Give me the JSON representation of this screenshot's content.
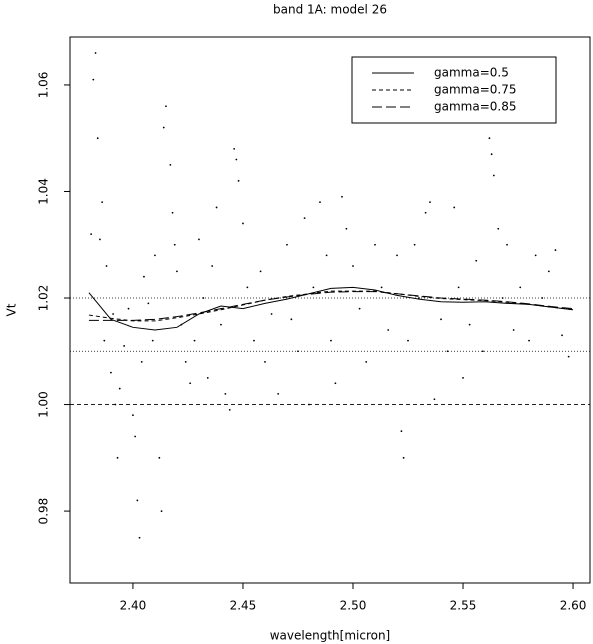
{
  "chart_data": {
    "type": "line",
    "title": "band 1A: model 26",
    "x_label": "wavelength[micron]",
    "y_label": "Vt",
    "xlim": [
      2.3714,
      2.6077
    ],
    "ylim": [
      0.9665,
      1.069
    ],
    "xticks": [
      {
        "value": 2.4,
        "label": "2.40"
      },
      2.45,
      {
        "value": 2.5,
        "label": "2.50"
      },
      2.55,
      {
        "value": 2.6,
        "label": "2.60"
      }
    ],
    "yticks": [
      {
        "value": 0.98,
        "label": "0.98"
      },
      {
        "value": 1.0,
        "label": "1.00"
      },
      {
        "value": 1.02,
        "label": "1.02"
      },
      {
        "value": 1.04,
        "label": "1.04"
      },
      {
        "value": 1.06,
        "label": "1.06"
      }
    ],
    "legend": "top-right",
    "hlines": [
      {
        "value": 1.02,
        "dash": "dotted"
      },
      {
        "value": 1.01,
        "dash": "dotted"
      },
      {
        "value": 1.0,
        "dash": "dashed"
      }
    ],
    "points": {
      "color": "#000000",
      "x": [
        2.381,
        2.382,
        2.383,
        2.384,
        2.385,
        2.386,
        2.387,
        2.388,
        2.39,
        2.391,
        2.392,
        2.393,
        2.394,
        2.396,
        2.398,
        2.4,
        2.401,
        2.402,
        2.403,
        2.404,
        2.405,
        2.407,
        2.409,
        2.41,
        2.412,
        2.413,
        2.414,
        2.415,
        2.417,
        2.418,
        2.419,
        2.42,
        2.422,
        2.424,
        2.426,
        2.428,
        2.43,
        2.432,
        2.434,
        2.436,
        2.438,
        2.44,
        2.442,
        2.444,
        2.446,
        2.447,
        2.448,
        2.45,
        2.452,
        2.455,
        2.458,
        2.46,
        2.463,
        2.466,
        2.47,
        2.472,
        2.475,
        2.478,
        2.48,
        2.482,
        2.485,
        2.488,
        2.49,
        2.492,
        2.495,
        2.497,
        2.5,
        2.503,
        2.506,
        2.51,
        2.513,
        2.516,
        2.52,
        2.522,
        2.523,
        2.525,
        2.528,
        2.53,
        2.533,
        2.535,
        2.537,
        2.54,
        2.543,
        2.546,
        2.548,
        2.55,
        2.553,
        2.556,
        2.559,
        2.562,
        2.563,
        2.564,
        2.566,
        2.568,
        2.57,
        2.573,
        2.576,
        2.58,
        2.583,
        2.586,
        2.589,
        2.592,
        2.595,
        2.598
      ],
      "y": [
        1.032,
        1.061,
        1.066,
        1.05,
        1.031,
        1.038,
        1.012,
        1.026,
        1.006,
        1.017,
        1.0,
        0.99,
        1.003,
        1.011,
        1.018,
        0.998,
        0.994,
        0.982,
        0.975,
        1.008,
        1.024,
        1.019,
        1.012,
        1.028,
        0.99,
        0.98,
        1.052,
        1.056,
        1.045,
        1.036,
        1.03,
        1.025,
        1.015,
        1.008,
        1.004,
        1.012,
        1.031,
        1.02,
        1.005,
        1.026,
        1.037,
        1.015,
        1.002,
        0.999,
        1.048,
        1.046,
        1.042,
        1.034,
        1.022,
        1.012,
        1.025,
        1.008,
        1.017,
        1.002,
        1.03,
        1.016,
        1.01,
        1.035,
        1.0,
        1.022,
        1.038,
        1.028,
        1.012,
        1.004,
        1.039,
        1.033,
        1.026,
        1.018,
        1.008,
        1.03,
        1.022,
        1.014,
        1.028,
        0.995,
        0.99,
        1.012,
        1.03,
        1.02,
        1.036,
        1.038,
        1.001,
        1.016,
        1.01,
        1.037,
        1.022,
        1.005,
        1.015,
        1.027,
        1.01,
        1.05,
        1.047,
        1.043,
        1.033,
        1.02,
        1.03,
        1.014,
        1.022,
        1.012,
        1.028,
        1.02,
        1.025,
        1.029,
        1.013,
        1.009
      ]
    },
    "x": [
      2.38,
      2.39,
      2.4,
      2.41,
      2.42,
      2.43,
      2.44,
      2.45,
      2.46,
      2.47,
      2.48,
      2.49,
      2.5,
      2.51,
      2.52,
      2.53,
      2.54,
      2.55,
      2.56,
      2.57,
      2.58,
      2.59,
      2.6
    ],
    "series": [
      {
        "name": "gamma=0.5",
        "color": "#000000",
        "dash": "solid",
        "values": [
          1.021,
          1.016,
          1.0145,
          1.014,
          1.0145,
          1.017,
          1.0185,
          1.018,
          1.019,
          1.0198,
          1.0208,
          1.0218,
          1.022,
          1.0215,
          1.0205,
          1.0198,
          1.0193,
          1.0192,
          1.0193,
          1.019,
          1.0188,
          1.0183,
          1.0178
        ]
      },
      {
        "name": "gamma=0.75",
        "color": "#000000",
        "dash": "dashed",
        "values": [
          1.0168,
          1.0162,
          1.0157,
          1.0157,
          1.0163,
          1.017,
          1.0178,
          1.0187,
          1.0196,
          1.0203,
          1.0208,
          1.0213,
          1.0213,
          1.0213,
          1.0208,
          1.0203,
          1.0199,
          1.0197,
          1.0195,
          1.0192,
          1.0188,
          1.0183,
          1.0178
        ]
      },
      {
        "name": "gamma=0.85",
        "color": "#000000",
        "dash": "longdash",
        "values": [
          1.0158,
          1.0158,
          1.0158,
          1.016,
          1.0165,
          1.0172,
          1.018,
          1.0188,
          1.0196,
          1.0202,
          1.0207,
          1.0211,
          1.0212,
          1.0212,
          1.0208,
          1.0204,
          1.02,
          1.0198,
          1.0196,
          1.0193,
          1.0189,
          1.0184,
          1.018
        ]
      }
    ]
  }
}
